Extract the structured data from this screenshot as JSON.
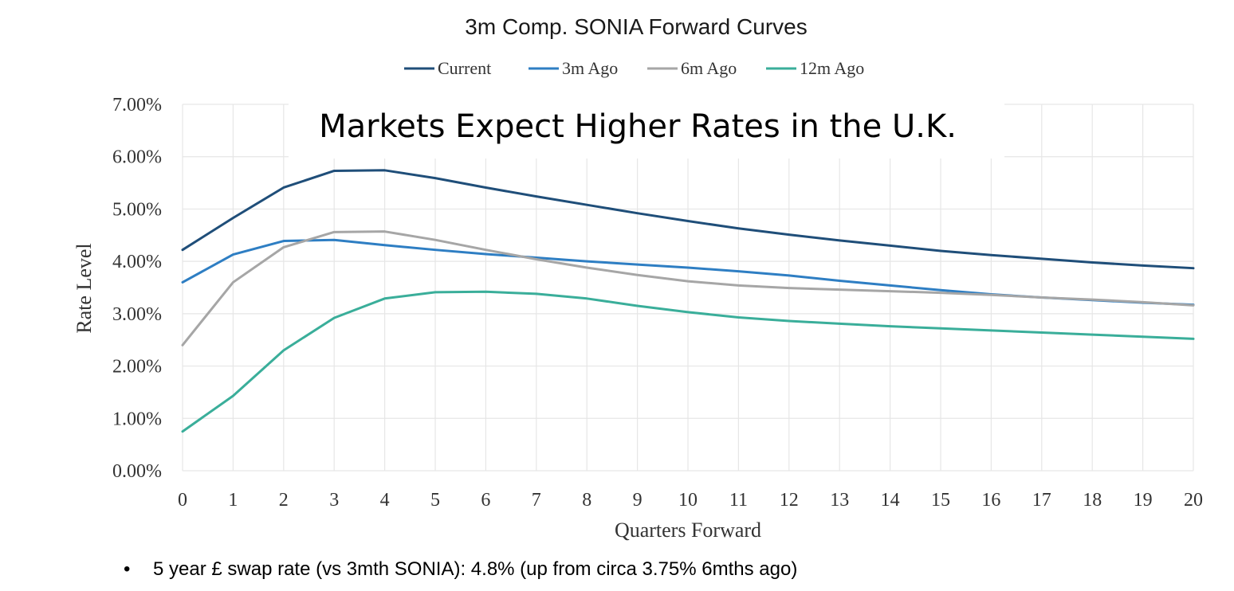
{
  "chart_data": {
    "type": "line",
    "title": "3m Comp. SONIA Forward Curves",
    "overlay_text": "Markets Expect Higher Rates in the U.K.",
    "xlabel": "Quarters Forward",
    "ylabel": "Rate Level",
    "x": [
      0,
      1,
      2,
      3,
      4,
      5,
      6,
      7,
      8,
      9,
      10,
      11,
      12,
      13,
      14,
      15,
      16,
      17,
      18,
      19,
      20
    ],
    "x_tick_labels": [
      "0",
      "1",
      "2",
      "3",
      "4",
      "5",
      "6",
      "7",
      "8",
      "9",
      "10",
      "11",
      "12",
      "13",
      "14",
      "15",
      "16",
      "17",
      "18",
      "19",
      "20"
    ],
    "ylim": [
      0,
      7
    ],
    "y_ticks": [
      0,
      1,
      2,
      3,
      4,
      5,
      6,
      7
    ],
    "y_tick_labels": [
      "0.00%",
      "1.00%",
      "2.00%",
      "3.00%",
      "4.00%",
      "5.00%",
      "6.00%",
      "7.00%"
    ],
    "grid": true,
    "legend_position": "top-center",
    "series": [
      {
        "name": "Current",
        "color": "#1f4e79",
        "values": [
          4.22,
          4.83,
          5.41,
          5.73,
          5.74,
          5.59,
          5.41,
          5.24,
          5.08,
          4.92,
          4.77,
          4.63,
          4.51,
          4.4,
          4.3,
          4.2,
          4.12,
          4.05,
          3.98,
          3.92,
          3.87
        ]
      },
      {
        "name": "3m Ago",
        "color": "#2e7ec3",
        "values": [
          3.6,
          4.13,
          4.39,
          4.41,
          4.31,
          4.22,
          4.14,
          4.07,
          4.0,
          3.94,
          3.88,
          3.81,
          3.73,
          3.63,
          3.54,
          3.45,
          3.37,
          3.31,
          3.26,
          3.21,
          3.17
        ]
      },
      {
        "name": "6m Ago",
        "color": "#a6a6a6",
        "values": [
          2.4,
          3.6,
          4.27,
          4.56,
          4.57,
          4.41,
          4.22,
          4.04,
          3.88,
          3.74,
          3.62,
          3.54,
          3.49,
          3.46,
          3.43,
          3.4,
          3.36,
          3.31,
          3.27,
          3.22,
          3.16
        ]
      },
      {
        "name": "12m Ago",
        "color": "#3aae9a",
        "values": [
          0.75,
          1.43,
          2.3,
          2.92,
          3.29,
          3.41,
          3.42,
          3.38,
          3.29,
          3.15,
          3.03,
          2.93,
          2.86,
          2.81,
          2.76,
          2.72,
          2.68,
          2.64,
          2.6,
          2.56,
          2.52
        ]
      }
    ]
  },
  "note": {
    "bullet": "•",
    "text": "5 year £ swap rate (vs 3mth SONIA): 4.8% (up from circa 3.75% 6mths ago)"
  }
}
